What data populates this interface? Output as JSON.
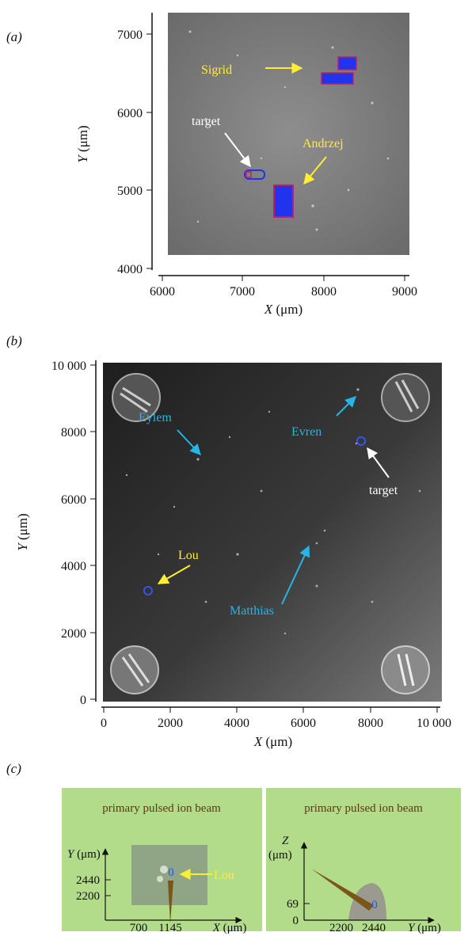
{
  "panels": {
    "a": {
      "label": "(a)",
      "xlabel_var": "X",
      "xlabel_unit": " (μm)",
      "ylabel_var": "Y",
      "ylabel_unit": " (μm)",
      "xticks": [
        "6000",
        "7000",
        "8000",
        "9000"
      ],
      "yticks": [
        "7000",
        "6000",
        "5000",
        "4000"
      ],
      "annotations": [
        {
          "text": "Sigrid",
          "color": "#ffee33"
        },
        {
          "text": "target",
          "color": "#ffffff"
        },
        {
          "text": "Andrzej",
          "color": "#ffee33"
        }
      ]
    },
    "b": {
      "label": "(b)",
      "xlabel_var": "X",
      "xlabel_unit": " (μm)",
      "ylabel_var": "Y",
      "ylabel_unit": " (μm)",
      "xticks": [
        "0",
        "2000",
        "4000",
        "6000",
        "8000",
        "10 000"
      ],
      "yticks": [
        "10 000",
        "8000",
        "6000",
        "4000",
        "2000",
        "0"
      ],
      "annotations": [
        {
          "text": "Eylem",
          "color": "#27b4e6"
        },
        {
          "text": "Evren",
          "color": "#27b4e6"
        },
        {
          "text": "target",
          "color": "#ffffff"
        },
        {
          "text": "Lou",
          "color": "#ffee33"
        },
        {
          "text": "Matthias",
          "color": "#27b4e6"
        }
      ]
    },
    "c": {
      "label": "(c)",
      "left": {
        "title": "primary pulsed ion beam",
        "ylabel_var": "Y",
        "ylabel_unit": " (μm)",
        "yticks": [
          "2440",
          "2200"
        ],
        "xticks": [
          "700",
          "1145"
        ],
        "xlabel_var": "X",
        "xlabel_unit": " (μm)",
        "marker": "0",
        "annotation": "Lou"
      },
      "right": {
        "title": "primary pulsed ion beam",
        "zlabel_var": "Z",
        "zlabel_unit": "(μm)",
        "zticks": [
          "69",
          "0"
        ],
        "xticks": [
          "2200",
          "2440"
        ],
        "xlabel_var": "Y",
        "xlabel_unit": " (μm)",
        "marker": "0"
      }
    }
  },
  "colors": {
    "yellow": "#ffee33",
    "cyan": "#27b4e6",
    "green_bg": "#b2dc8a",
    "beam": "#7a5618"
  }
}
